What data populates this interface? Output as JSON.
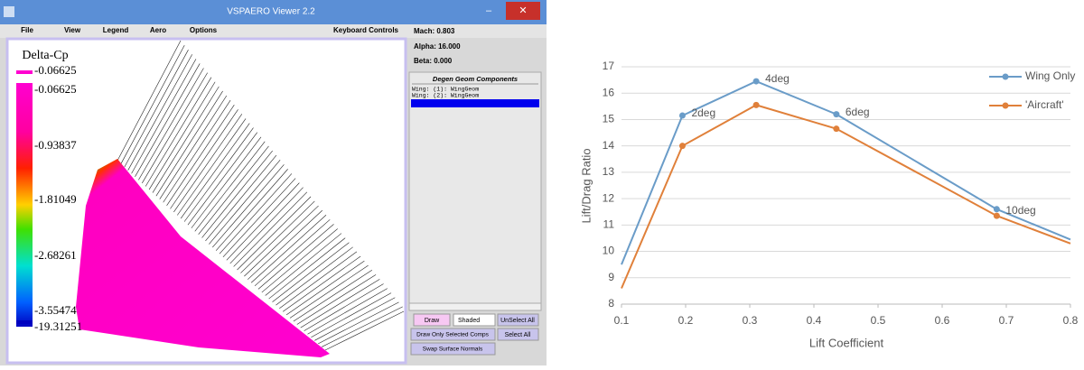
{
  "viewer": {
    "window_title": "VSPAERO Viewer 2.2",
    "menu": [
      "File",
      "View",
      "Legend",
      "Aero",
      "Options"
    ],
    "keyboard_controls": "Keyboard Controls",
    "legend_title": "Delta-Cp",
    "legend_labels": [
      "-0.06625",
      "-0.06625",
      "-0.93837",
      "-1.81049",
      "-2.68261",
      "-3.55474",
      "-19.31251"
    ],
    "mach": "Mach: 0.803",
    "alpha": "Alpha: 16.000",
    "beta": "Beta: 0.000",
    "components_title": "Degen Geom Components",
    "components": [
      "Wing:  (1):  WingGeom",
      "Wing:  (2):  WingGeom"
    ],
    "buttons": {
      "draw": "Draw",
      "shaded": "Shaded",
      "unselect_all": "UnSelect All",
      "draw_only_selected": "Draw Only Selected Comps",
      "select_all": "Select All",
      "swap_normals": "Swap Surface Normals"
    }
  },
  "chart_data": {
    "type": "line",
    "x_label": "Lift Coefficient",
    "y_label": "Lift/Drag Ratio",
    "x": [
      0.1,
      0.195,
      0.31,
      0.435,
      0.685,
      0.8
    ],
    "series": [
      {
        "name": "Wing Only",
        "color": "#6a9cc8",
        "values": [
          9.5,
          15.15,
          16.45,
          15.2,
          11.6,
          10.45
        ]
      },
      {
        "name": "'Aircraft'",
        "color": "#e0803a",
        "values": [
          8.6,
          14.0,
          15.55,
          14.65,
          11.35,
          10.3
        ]
      }
    ],
    "annotations": [
      {
        "text": "2deg",
        "x": 0.195
      },
      {
        "text": "4deg",
        "x": 0.31
      },
      {
        "text": "6deg",
        "x": 0.435
      },
      {
        "text": "10deg",
        "x": 0.685
      }
    ],
    "xlim": [
      0.1,
      0.8
    ],
    "xticks": [
      0.1,
      0.2,
      0.3,
      0.4,
      0.5,
      0.6,
      0.7,
      0.8
    ],
    "ylim": [
      8,
      17
    ],
    "yticks": [
      8,
      9,
      10,
      11,
      12,
      13,
      14,
      15,
      16,
      17
    ],
    "grid": true,
    "legend": "top-right"
  }
}
